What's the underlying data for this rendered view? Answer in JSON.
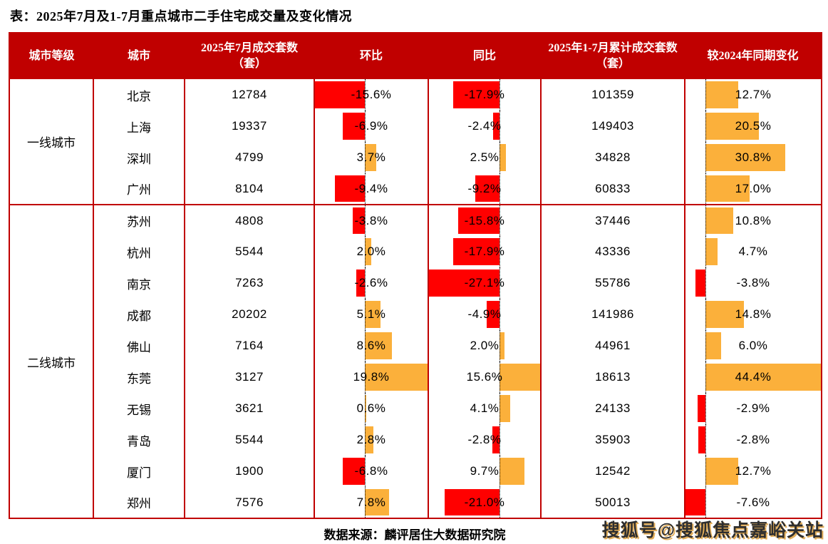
{
  "chart_data": {
    "type": "table",
    "title": "表：2025年7月及1-7月重点城市二手住宅成交量及变化情况",
    "columns": [
      "城市等级",
      "城市",
      "2025年7月成交套数（套）",
      "环比",
      "同比",
      "2025年1-7月累计成交套数（套）",
      "较2024年同期变化"
    ],
    "bar_columns": {
      "mom": {
        "min": -15.6,
        "max": 19.8
      },
      "yoy": {
        "min": -27.1,
        "max": 15.6
      },
      "chg": {
        "min": -7.6,
        "max": 44.4
      }
    },
    "groups": [
      {
        "tier": "一线城市",
        "rows": [
          {
            "city": "北京",
            "july_units": "12784",
            "mom_pct": -15.6,
            "mom_label": "-15.6%",
            "yoy_pct": -17.9,
            "yoy_label": "-17.9%",
            "cum_units": "101359",
            "chg_pct": 12.7,
            "chg_label": "12.7%"
          },
          {
            "city": "上海",
            "july_units": "19337",
            "mom_pct": -6.9,
            "mom_label": "-6.9%",
            "yoy_pct": -2.4,
            "yoy_label": "-2.4%",
            "cum_units": "149403",
            "chg_pct": 20.5,
            "chg_label": "20.5%"
          },
          {
            "city": "深圳",
            "july_units": "4799",
            "mom_pct": 3.7,
            "mom_label": "3.7%",
            "yoy_pct": 2.5,
            "yoy_label": "2.5%",
            "cum_units": "34828",
            "chg_pct": 30.8,
            "chg_label": "30.8%"
          },
          {
            "city": "广州",
            "july_units": "8104",
            "mom_pct": -9.4,
            "mom_label": "-9.4%",
            "yoy_pct": -9.2,
            "yoy_label": "-9.2%",
            "cum_units": "60833",
            "chg_pct": 17.0,
            "chg_label": "17.0%"
          }
        ]
      },
      {
        "tier": "二线城市",
        "rows": [
          {
            "city": "苏州",
            "july_units": "4808",
            "mom_pct": -3.8,
            "mom_label": "-3.8%",
            "yoy_pct": -15.8,
            "yoy_label": "-15.8%",
            "cum_units": "37446",
            "chg_pct": 10.8,
            "chg_label": "10.8%"
          },
          {
            "city": "杭州",
            "july_units": "5544",
            "mom_pct": 2.0,
            "mom_label": "2.0%",
            "yoy_pct": -17.9,
            "yoy_label": "-17.9%",
            "cum_units": "43336",
            "chg_pct": 4.7,
            "chg_label": "4.7%"
          },
          {
            "city": "南京",
            "july_units": "7263",
            "mom_pct": -2.6,
            "mom_label": "-2.6%",
            "yoy_pct": -27.1,
            "yoy_label": "-27.1%",
            "cum_units": "55786",
            "chg_pct": -3.8,
            "chg_label": "-3.8%"
          },
          {
            "city": "成都",
            "july_units": "20202",
            "mom_pct": 5.1,
            "mom_label": "5.1%",
            "yoy_pct": -4.9,
            "yoy_label": "-4.9%",
            "cum_units": "141986",
            "chg_pct": 14.8,
            "chg_label": "14.8%"
          },
          {
            "city": "佛山",
            "july_units": "7164",
            "mom_pct": 8.6,
            "mom_label": "8.6%",
            "yoy_pct": 2.0,
            "yoy_label": "2.0%",
            "cum_units": "44961",
            "chg_pct": 6.0,
            "chg_label": "6.0%"
          },
          {
            "city": "东莞",
            "july_units": "3127",
            "mom_pct": 19.8,
            "mom_label": "19.8%",
            "yoy_pct": 15.6,
            "yoy_label": "15.6%",
            "cum_units": "18613",
            "chg_pct": 44.4,
            "chg_label": "44.4%"
          },
          {
            "city": "无锡",
            "july_units": "3621",
            "mom_pct": 0.6,
            "mom_label": "0.6%",
            "yoy_pct": 4.1,
            "yoy_label": "4.1%",
            "cum_units": "24133",
            "chg_pct": -2.9,
            "chg_label": "-2.9%"
          },
          {
            "city": "青岛",
            "july_units": "5544",
            "mom_pct": 2.8,
            "mom_label": "2.8%",
            "yoy_pct": -2.8,
            "yoy_label": "-2.8%",
            "cum_units": "35903",
            "chg_pct": -2.8,
            "chg_label": "-2.8%"
          },
          {
            "city": "厦门",
            "july_units": "1900",
            "mom_pct": -6.8,
            "mom_label": "-6.8%",
            "yoy_pct": 9.7,
            "yoy_label": "9.7%",
            "cum_units": "12542",
            "chg_pct": 12.7,
            "chg_label": "12.7%"
          },
          {
            "city": "郑州",
            "july_units": "7576",
            "mom_pct": 7.8,
            "mom_label": "7.8%",
            "yoy_pct": -21.0,
            "yoy_label": "-21.0%",
            "cum_units": "50013",
            "chg_pct": -7.6,
            "chg_label": "-7.6%"
          }
        ]
      }
    ]
  },
  "footer": {
    "source": "数据来源：麟评居住大数据研究院"
  },
  "watermark": {
    "text": "搜狐号@搜狐焦点嘉峪关站"
  },
  "colors": {
    "header_background": "#C00000",
    "table_border": "#C00000",
    "bar_negative": "#FF0000",
    "bar_positive": "#FBB03B",
    "header_text": "#FFFFFF",
    "body_text": "#000000"
  }
}
